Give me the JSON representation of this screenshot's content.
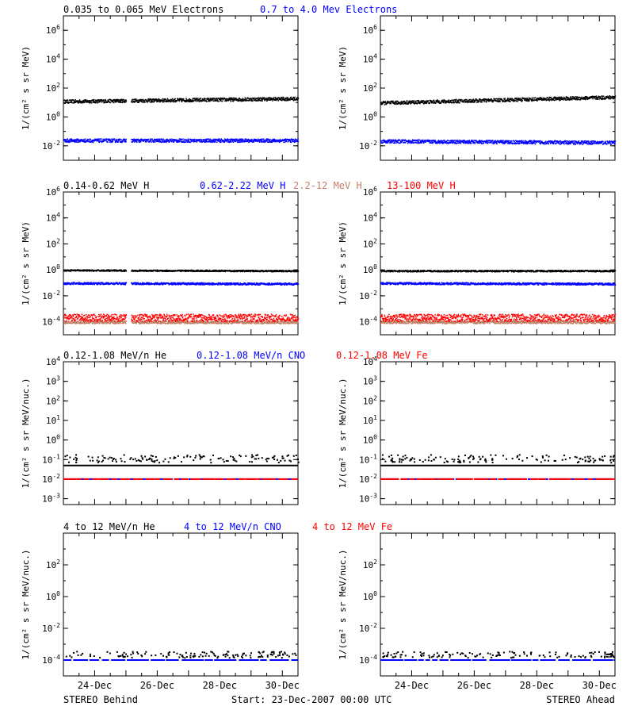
{
  "colors": {
    "black": "#000000",
    "blue": "#0000ff",
    "tan": "#c08068",
    "red": "#ff0000"
  },
  "footer": {
    "left": "STEREO Behind",
    "center": "Start: 23-Dec-2007 00:00 UTC",
    "right": "STEREO Ahead"
  },
  "chart_data": [
    {
      "type": "scatter",
      "title_segments": [
        {
          "text": "0.035 to 0.065 MeV Electrons",
          "color": "#000000"
        },
        {
          "text": "0.7 to 4.0 Mev Electrons",
          "color": "#0000ff"
        }
      ],
      "ylabel": "1/(cm² s sr MeV)",
      "yscale": "log",
      "ylim": [
        0.001,
        10000000
      ],
      "yticks": [
        {
          "v": 0.01,
          "label": "10^-2"
        },
        {
          "v": 1,
          "label": "10^0"
        },
        {
          "v": 100,
          "label": "10^2"
        },
        {
          "v": 10000,
          "label": "10^4"
        },
        {
          "v": 1000000,
          "label": "10^6"
        }
      ],
      "xlim": [
        0,
        7.5
      ],
      "xticks": [],
      "panels": [
        {
          "id": "behind",
          "gaps": [
            [
              2.0,
              2.15
            ]
          ],
          "series": [
            {
              "name": "0.035 to 0.065 MeV Electrons",
              "color": "#000000",
              "log_start": 1.1,
              "log_end": 1.3,
              "spread": 0.12
            },
            {
              "name": "0.7 to 4.0 Mev Electrons",
              "color": "#0000ff",
              "log_start": -1.6,
              "log_end": -1.6,
              "spread": 0.12
            }
          ]
        },
        {
          "id": "ahead",
          "gaps": [],
          "series": [
            {
              "name": "0.035 to 0.065 MeV Electrons",
              "color": "#000000",
              "log_start": 1.0,
              "log_end": 1.4,
              "spread": 0.12
            },
            {
              "name": "0.7 to 4.0 Mev Electrons",
              "color": "#0000ff",
              "log_start": -1.65,
              "log_end": -1.75,
              "spread": 0.12
            }
          ]
        }
      ]
    },
    {
      "type": "scatter",
      "title_segments": [
        {
          "text": "0.14-0.62 MeV H",
          "color": "#000000"
        },
        {
          "text": "0.62-2.22 MeV H",
          "color": "#0000ff"
        },
        {
          "text": "2.2-12 MeV H",
          "color": "#c08068"
        },
        {
          "text": "13-100 MeV H",
          "color": "#ff0000"
        }
      ],
      "ylabel": "1/(cm² s sr MeV)",
      "yscale": "log",
      "ylim": [
        1e-05,
        1000000
      ],
      "yticks": [
        {
          "v": 0.0001,
          "label": "10^-4"
        },
        {
          "v": 0.01,
          "label": "10^-2"
        },
        {
          "v": 1,
          "label": "10^0"
        },
        {
          "v": 100,
          "label": "10^2"
        },
        {
          "v": 10000,
          "label": "10^4"
        },
        {
          "v": 1000000,
          "label": "10^6"
        }
      ],
      "xlim": [
        0,
        7.5
      ],
      "xticks": [],
      "panels": [
        {
          "id": "behind",
          "gaps": [
            [
              2.0,
              2.15
            ]
          ],
          "series": [
            {
              "name": "0.14-0.62 MeV H",
              "color": "#000000",
              "log_start": 0.0,
              "log_end": -0.05,
              "spread": 0.06
            },
            {
              "name": "0.62-2.22 MeV H",
              "color": "#0000ff",
              "log_start": -1.0,
              "log_end": -1.05,
              "spread": 0.08
            },
            {
              "name": "2.2-12 MeV H",
              "color": "#c08068",
              "log_start": -4.0,
              "log_end": -4.0,
              "spread": 0.1
            },
            {
              "name": "13-100 MeV H",
              "color": "#ff0000",
              "log_start": -3.65,
              "log_end": -3.65,
              "spread": 0.28
            }
          ]
        },
        {
          "id": "ahead",
          "gaps": [],
          "series": [
            {
              "name": "0.14-0.62 MeV H",
              "color": "#000000",
              "log_start": -0.05,
              "log_end": -0.05,
              "spread": 0.06
            },
            {
              "name": "0.62-2.22 MeV H",
              "color": "#0000ff",
              "log_start": -1.0,
              "log_end": -1.05,
              "spread": 0.08
            },
            {
              "name": "2.2-12 MeV H",
              "color": "#c08068",
              "log_start": -4.0,
              "log_end": -4.0,
              "spread": 0.1
            },
            {
              "name": "13-100 MeV H",
              "color": "#ff0000",
              "log_start": -3.65,
              "log_end": -3.65,
              "spread": 0.28
            }
          ]
        }
      ]
    },
    {
      "type": "scatter",
      "title_segments": [
        {
          "text": "0.12-1.08 MeV/n He",
          "color": "#000000"
        },
        {
          "text": "0.12-1.08 MeV/n CNO",
          "color": "#0000ff"
        },
        {
          "text": "0.12-1.08 MeV Fe",
          "color": "#ff0000"
        }
      ],
      "ylabel": "1/(cm² s sr MeV/nuc.)",
      "yscale": "log",
      "ylim": [
        0.0005,
        10000
      ],
      "yticks": [
        {
          "v": 0.001,
          "label": "10^-3"
        },
        {
          "v": 0.01,
          "label": "10^-2"
        },
        {
          "v": 0.1,
          "label": "10^-1"
        },
        {
          "v": 1,
          "label": "10^0"
        },
        {
          "v": 10,
          "label": "10^1"
        },
        {
          "v": 100,
          "label": "10^2"
        },
        {
          "v": 1000,
          "label": "10^3"
        },
        {
          "v": 10000,
          "label": "10^4"
        }
      ],
      "xlim": [
        0,
        7.5
      ],
      "xticks": [],
      "panels": [
        {
          "id": "behind",
          "gaps": [
            [
              2.0,
              2.1
            ]
          ],
          "hline": {
            "v": 0.05,
            "color": "#000000"
          },
          "series": [
            {
              "name": "0.12-1.08 MeV/n He",
              "color": "#000000",
              "log_start": -1.0,
              "log_end": -1.0,
              "spread": 0.05,
              "sparse": true
            },
            {
              "name": "0.12-1.08 MeV/n CNO",
              "color": "#0000ff",
              "log_start": -2.0,
              "log_end": -2.0,
              "spread": 0.0,
              "sparse": false
            },
            {
              "name": "0.12-1.08 MeV Fe",
              "color": "#ff0000",
              "log_start": -2.0,
              "log_end": -2.0,
              "spread": 0.0,
              "sparse": false
            }
          ]
        },
        {
          "id": "ahead",
          "gaps": [],
          "hline": {
            "v": 0.05,
            "color": "#000000"
          },
          "series": [
            {
              "name": "0.12-1.08 MeV/n He",
              "color": "#000000",
              "log_start": -1.0,
              "log_end": -1.0,
              "spread": 0.05,
              "sparse": true
            },
            {
              "name": "0.12-1.08 MeV/n CNO",
              "color": "#0000ff",
              "log_start": -2.0,
              "log_end": -2.0,
              "spread": 0.0,
              "sparse": false
            },
            {
              "name": "0.12-1.08 MeV Fe",
              "color": "#ff0000",
              "log_start": -2.0,
              "log_end": -2.0,
              "spread": 0.0,
              "sparse": false
            }
          ]
        }
      ]
    },
    {
      "type": "scatter",
      "title_segments": [
        {
          "text": "4 to 12 MeV/n He",
          "color": "#000000"
        },
        {
          "text": "4 to 12 MeV/n CNO",
          "color": "#0000ff"
        },
        {
          "text": "4 to 12 MeV Fe",
          "color": "#ff0000"
        }
      ],
      "ylabel": "1/(cm² s sr MeV/nuc.)",
      "yscale": "log",
      "ylim": [
        1e-05,
        10000
      ],
      "yticks": [
        {
          "v": 0.0001,
          "label": "10^-4"
        },
        {
          "v": 0.01,
          "label": "10^-2"
        },
        {
          "v": 1,
          "label": "10^0"
        },
        {
          "v": 100,
          "label": "10^2"
        }
      ],
      "xlim": [
        0,
        7.5
      ],
      "xticks": [
        {
          "v": 1,
          "label": "24-Dec"
        },
        {
          "v": 3,
          "label": "26-Dec"
        },
        {
          "v": 5,
          "label": "28-Dec"
        },
        {
          "v": 7,
          "label": "30-Dec"
        }
      ],
      "panels": [
        {
          "id": "behind",
          "gaps": [],
          "series": [
            {
              "name": "4 to 12 MeV/n He",
              "color": "#000000",
              "log_start": -3.7,
              "log_end": -3.7,
              "spread": 0.05,
              "sparse": true
            },
            {
              "name": "4 to 12 MeV/n CNO",
              "color": "#0000ff",
              "log_start": -4.0,
              "log_end": -4.0,
              "spread": 0.0,
              "sparse": false
            }
          ]
        },
        {
          "id": "ahead",
          "gaps": [],
          "series": [
            {
              "name": "4 to 12 MeV/n He",
              "color": "#000000",
              "log_start": -3.7,
              "log_end": -3.7,
              "spread": 0.05,
              "sparse": true
            },
            {
              "name": "4 to 12 MeV/n CNO",
              "color": "#0000ff",
              "log_start": -4.0,
              "log_end": -4.0,
              "spread": 0.0,
              "sparse": false
            }
          ]
        }
      ]
    }
  ]
}
